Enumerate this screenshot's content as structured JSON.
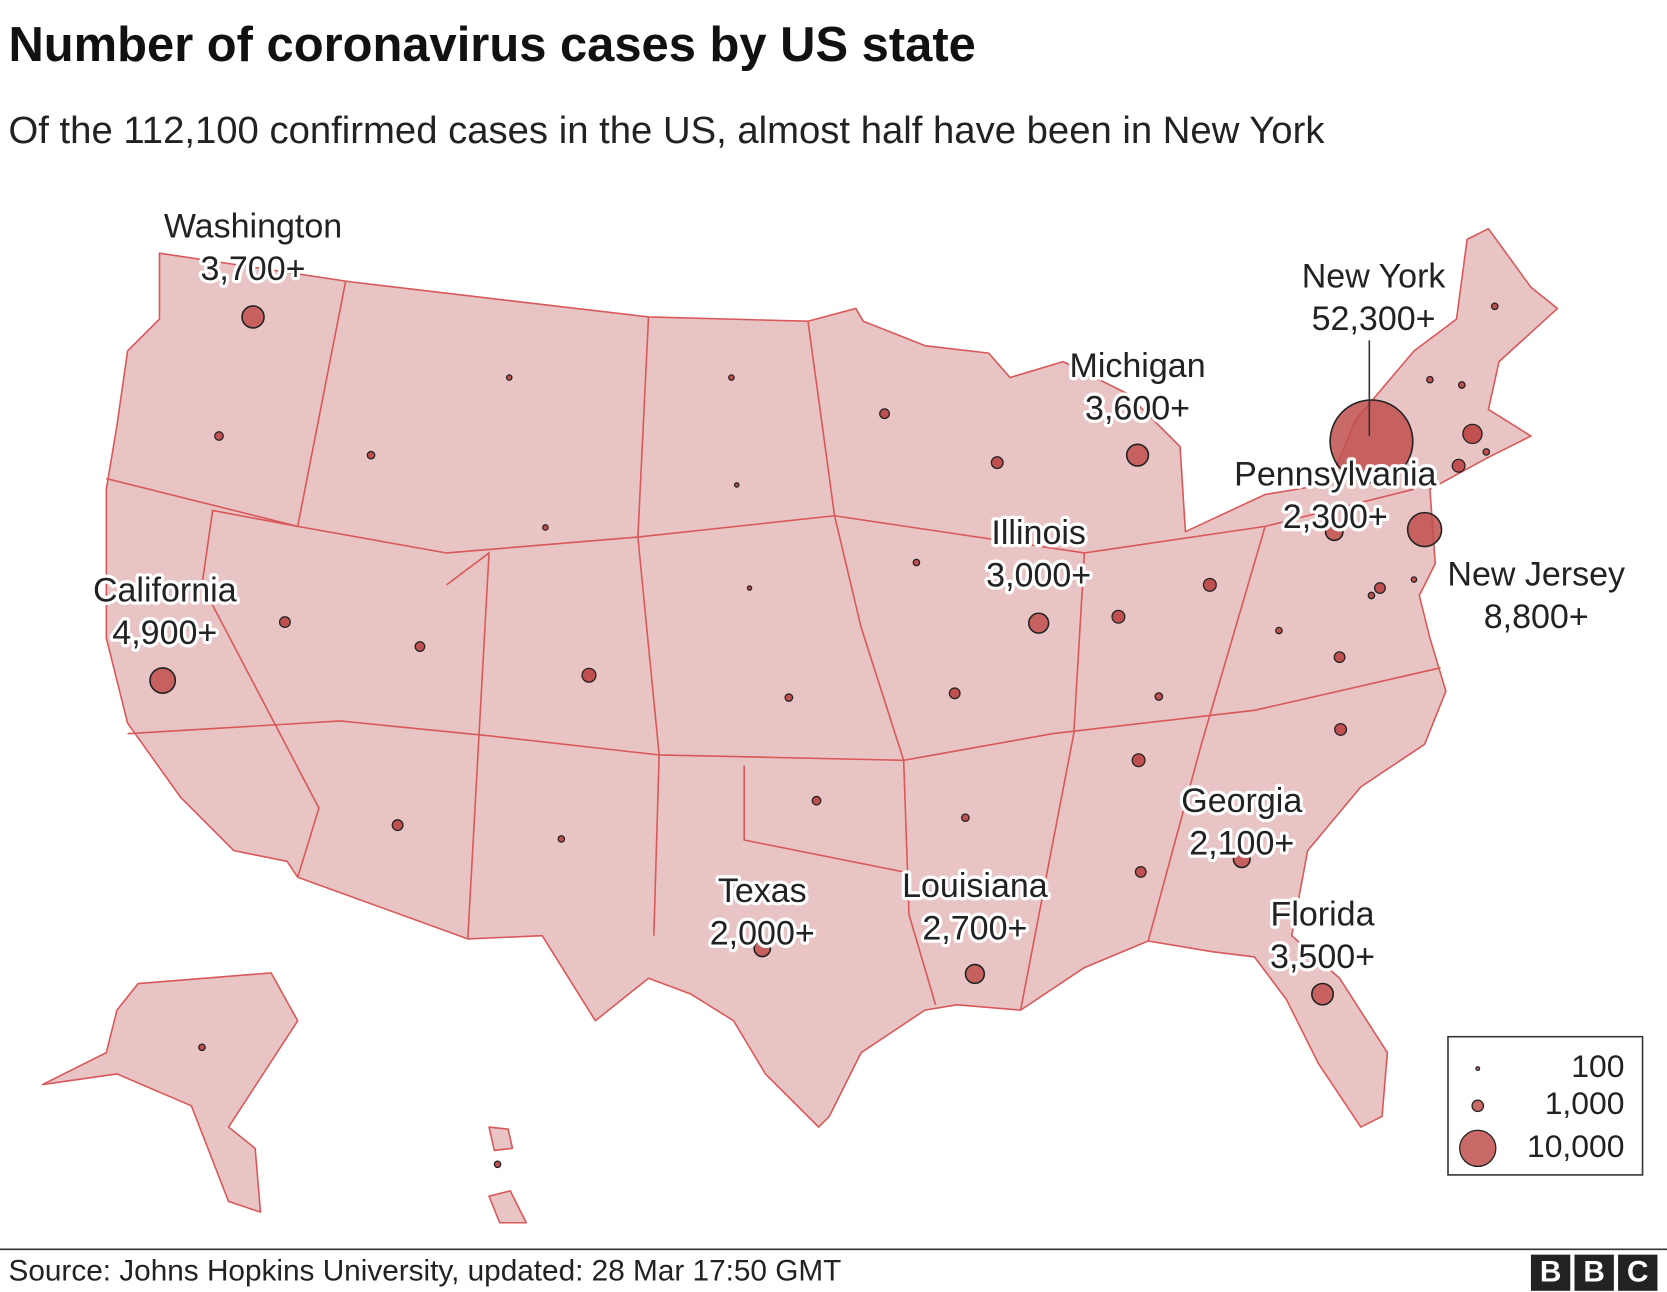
{
  "chart_data": {
    "type": "bubble-map",
    "title": "Number of coronavirus cases by US state",
    "subtitle": "Of the 112,100 confirmed cases in the US, almost half have been in New York",
    "source": "Source: Johns Hopkins University, updated: 28 Mar 17:50 GMT",
    "logo": "BBC",
    "color": "#c0504f",
    "points": [
      {
        "label": "Washington",
        "value": 3700,
        "value_label": "3,700+"
      },
      {
        "label": "California",
        "value": 4900,
        "value_label": "4,900+"
      },
      {
        "label": "Michigan",
        "value": 3600,
        "value_label": "3,600+"
      },
      {
        "label": "New York",
        "value": 52300,
        "value_label": "52,300+"
      },
      {
        "label": "Pennsylvania",
        "value": 2300,
        "value_label": "2,300+"
      },
      {
        "label": "New Jersey",
        "value": 8800,
        "value_label": "8,800+"
      },
      {
        "label": "Illinois",
        "value": 3000,
        "value_label": "3,000+"
      },
      {
        "label": "Georgia",
        "value": 2100,
        "value_label": "2,100+"
      },
      {
        "label": "Texas",
        "value": 2000,
        "value_label": "2,000+"
      },
      {
        "label": "Louisiana",
        "value": 2700,
        "value_label": "2,700+"
      },
      {
        "label": "Florida",
        "value": 3500,
        "value_label": "3,500+"
      }
    ],
    "legend_sizes": [
      {
        "value": 100,
        "label": "100"
      },
      {
        "value": 1000,
        "label": "1,000"
      },
      {
        "value": 10000,
        "label": "10,000"
      }
    ]
  }
}
